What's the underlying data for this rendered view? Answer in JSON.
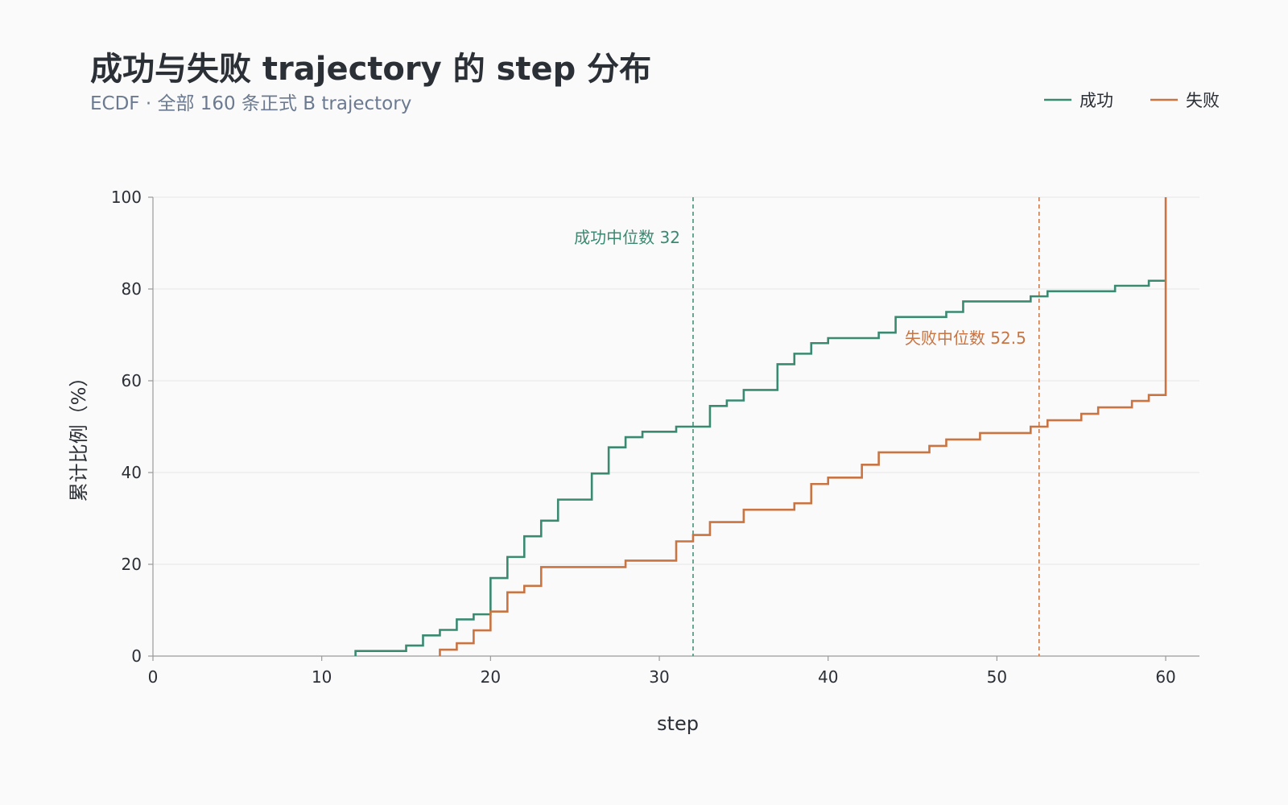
{
  "chart_data": {
    "type": "line",
    "subtype": "ecdf-step",
    "title": "成功与失败 trajectory 的 step 分布",
    "subtitle": "ECDF · 全部 160 条正式 B trajectory",
    "xlabel": "step",
    "ylabel": "累计比例（%）",
    "xlim": [
      0,
      62
    ],
    "ylim": [
      0,
      100
    ],
    "x_ticks": [
      0,
      10,
      20,
      30,
      40,
      50,
      60
    ],
    "y_ticks": [
      0,
      20,
      40,
      60,
      80,
      100
    ],
    "grid": "horizontal",
    "legend_position": "top-right",
    "series": [
      {
        "name": "成功",
        "color": "#3a8a72",
        "x": [
          12,
          15,
          16,
          17,
          18,
          19,
          20,
          21,
          22,
          23,
          24,
          26,
          27,
          28,
          29,
          31,
          33,
          34,
          35,
          37,
          38,
          39,
          40,
          43,
          44,
          47,
          48,
          52,
          53,
          57,
          59,
          60
        ],
        "y": [
          1.1,
          2.3,
          4.5,
          5.7,
          8.0,
          9.1,
          17.0,
          21.6,
          26.1,
          29.5,
          34.1,
          39.8,
          45.5,
          47.7,
          48.9,
          50.0,
          54.5,
          55.7,
          58.0,
          63.6,
          65.9,
          68.2,
          69.3,
          70.5,
          73.9,
          75.0,
          77.3,
          78.4,
          79.5,
          80.7,
          81.8,
          81.8
        ]
      },
      {
        "name": "失败",
        "color": "#c87443",
        "x": [
          17,
          18,
          19,
          20,
          21,
          22,
          23,
          28,
          31,
          32,
          33,
          35,
          38,
          39,
          40,
          42,
          43,
          46,
          47,
          49,
          52,
          53,
          55,
          56,
          58,
          59,
          60
        ],
        "y": [
          1.4,
          2.8,
          5.6,
          9.7,
          13.9,
          15.3,
          19.4,
          20.8,
          25.0,
          26.4,
          29.2,
          31.9,
          33.3,
          37.5,
          38.9,
          41.7,
          44.4,
          45.8,
          47.2,
          48.6,
          50.0,
          51.4,
          52.8,
          54.2,
          55.6,
          56.9,
          100
        ]
      }
    ],
    "annotations": [
      {
        "label": "成功中位数 32",
        "x": 32,
        "series": "成功"
      },
      {
        "label": "失败中位数 52.5",
        "x": 52.5,
        "series": "失败"
      }
    ]
  }
}
